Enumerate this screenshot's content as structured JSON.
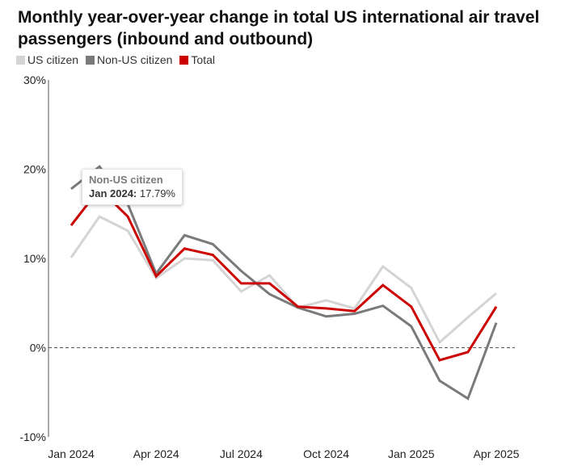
{
  "chart_data": {
    "type": "line",
    "title": "Monthly year-over-year change in total US international air travel passengers (inbound and outbound)",
    "xlabel": "",
    "ylabel": "",
    "ylim": [
      -10,
      30
    ],
    "yticks": [
      "30%",
      "20%",
      "10%",
      "0%",
      "-10%"
    ],
    "x": [
      "Jan 2024",
      "Feb 2024",
      "Mar 2024",
      "Apr 2024",
      "May 2024",
      "Jun 2024",
      "Jul 2024",
      "Aug 2024",
      "Sep 2024",
      "Oct 2024",
      "Nov 2024",
      "Dec 2024",
      "Jan 2025",
      "Feb 2025",
      "Mar 2025",
      "Apr 2025"
    ],
    "xticks": [
      "Jan 2024",
      "Apr 2024",
      "Jul 2024",
      "Oct 2024",
      "Jan 2025",
      "Apr 2025"
    ],
    "series": [
      {
        "name": "US citizen",
        "color": "#d4d4d4",
        "values": [
          10.1,
          14.7,
          13.1,
          7.8,
          10.0,
          9.8,
          6.3,
          8.1,
          4.5,
          5.3,
          4.4,
          9.1,
          6.7,
          0.6,
          3.4,
          6.1
        ]
      },
      {
        "name": "Non-US citizen",
        "color": "#7a7a7a",
        "values": [
          17.79,
          20.3,
          16.1,
          8.3,
          12.6,
          11.6,
          8.6,
          6.0,
          4.5,
          3.5,
          3.8,
          4.7,
          2.4,
          -3.7,
          -5.7,
          2.8
        ]
      },
      {
        "name": "Total",
        "color": "#cc0000",
        "values": [
          13.7,
          17.8,
          14.7,
          8.0,
          11.1,
          10.4,
          7.2,
          7.2,
          4.6,
          4.4,
          4.1,
          7.0,
          4.6,
          -1.4,
          -0.5,
          4.6
        ]
      }
    ],
    "zero_line": "dashed",
    "tooltip": {
      "series": "Non-US citizen",
      "month": "Jan 2024:",
      "value": "17.79%"
    }
  }
}
